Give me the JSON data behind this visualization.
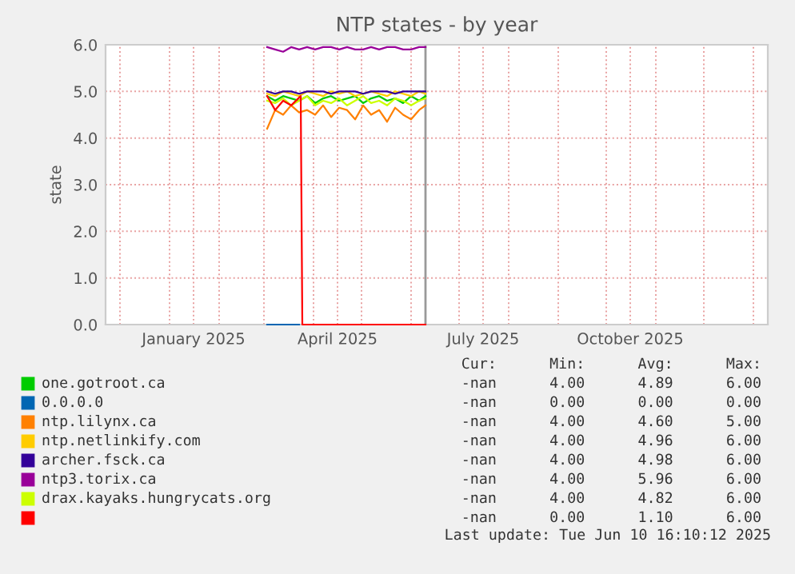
{
  "chart_data": {
    "type": "line",
    "title": "NTP states - by year",
    "ylabel": "state",
    "x": [
      "2025-03-03",
      "2025-03-08",
      "2025-03-13",
      "2025-03-18",
      "2025-03-23",
      "2025-03-28",
      "2025-04-02",
      "2025-04-07",
      "2025-04-12",
      "2025-04-17",
      "2025-04-22",
      "2025-04-27",
      "2025-05-02",
      "2025-05-07",
      "2025-05-12",
      "2025-05-17",
      "2025-05-22",
      "2025-05-27",
      "2025-06-01",
      "2025-06-06",
      "2025-06-10"
    ],
    "series": [
      {
        "name": "one.gotroot.ca",
        "color": "#00cc00",
        "values": [
          4.9,
          4.8,
          4.9,
          4.85,
          4.8,
          4.9,
          4.75,
          4.85,
          4.9,
          4.8,
          4.85,
          4.9,
          4.75,
          4.85,
          4.9,
          4.8,
          4.85,
          4.75,
          4.9,
          4.8,
          4.9
        ]
      },
      {
        "name": "0.0.0.0",
        "color": "#0066b3",
        "values": [
          0,
          0,
          0,
          0,
          0,
          null,
          null,
          null,
          null,
          null,
          null,
          null,
          null,
          null,
          null,
          null,
          null,
          null,
          null,
          null,
          null
        ]
      },
      {
        "name": "ntp.lilynx.ca",
        "color": "#ff8000",
        "values": [
          4.2,
          4.6,
          4.5,
          4.7,
          4.55,
          4.6,
          4.5,
          4.7,
          4.45,
          4.65,
          4.6,
          4.4,
          4.7,
          4.5,
          4.6,
          4.35,
          4.65,
          4.5,
          4.4,
          4.6,
          4.7
        ]
      },
      {
        "name": "ntp.netlinkify.com",
        "color": "#ffcc00",
        "values": [
          4.95,
          4.9,
          5.0,
          4.95,
          4.9,
          5.0,
          4.95,
          4.9,
          5.0,
          4.95,
          5.0,
          4.9,
          4.95,
          5.0,
          4.95,
          4.9,
          5.0,
          4.95,
          4.9,
          5.0,
          4.95
        ]
      },
      {
        "name": "archer.fsck.ca",
        "color": "#330099",
        "values": [
          5.0,
          4.95,
          5.0,
          5.0,
          4.95,
          5.0,
          5.0,
          5.0,
          4.95,
          5.0,
          5.0,
          5.0,
          4.95,
          5.0,
          5.0,
          5.0,
          4.95,
          5.0,
          5.0,
          5.0,
          5.0
        ]
      },
      {
        "name": "ntp3.torix.ca",
        "color": "#990099",
        "values": [
          5.95,
          5.9,
          5.85,
          5.95,
          5.9,
          5.95,
          5.9,
          5.95,
          5.95,
          5.9,
          5.95,
          5.9,
          5.9,
          5.95,
          5.9,
          5.95,
          5.95,
          5.9,
          5.9,
          5.95,
          5.95
        ]
      },
      {
        "name": "drax.kayaks.hungrycats.org",
        "color": "#ccff00",
        "values": [
          4.8,
          4.75,
          4.85,
          4.7,
          4.8,
          4.9,
          4.7,
          4.8,
          4.75,
          4.85,
          4.7,
          4.8,
          4.9,
          4.75,
          4.8,
          4.7,
          4.85,
          4.8,
          4.7,
          4.8,
          4.85
        ]
      },
      {
        "color": "#ff0000",
        "x": [
          "2025-03-03",
          "2025-03-08",
          "2025-03-13",
          "2025-03-18",
          "2025-03-24",
          "2025-03-25",
          "2025-06-10"
        ],
        "values": [
          4.9,
          4.6,
          4.8,
          4.7,
          4.9,
          0,
          0
        ]
      }
    ],
    "xlim": [
      "2024-11-22",
      "2026-01-10"
    ],
    "xticks": [
      {
        "value": "2024-12-01",
        "label": null
      },
      {
        "value": "2025-01-01",
        "label": null
      },
      {
        "value": "2025-01-16",
        "label": "January 2025"
      },
      {
        "value": "2025-02-01",
        "label": null
      },
      {
        "value": "2025-03-01",
        "label": null
      },
      {
        "value": "2025-04-01",
        "label": null
      },
      {
        "value": "2025-04-16",
        "label": "April 2025"
      },
      {
        "value": "2025-05-01",
        "label": null
      },
      {
        "value": "2025-06-01",
        "label": null
      },
      {
        "value": "2025-07-01",
        "label": null
      },
      {
        "value": "2025-07-16",
        "label": "July 2025"
      },
      {
        "value": "2025-08-01",
        "label": null
      },
      {
        "value": "2025-09-01",
        "label": null
      },
      {
        "value": "2025-10-01",
        "label": null
      },
      {
        "value": "2025-10-16",
        "label": "October 2025"
      },
      {
        "value": "2025-11-01",
        "label": null
      },
      {
        "value": "2025-12-01",
        "label": null
      },
      {
        "value": "2026-01-01",
        "label": null
      }
    ],
    "ylim": [
      0,
      6
    ],
    "yticks": [
      {
        "value": 0,
        "label": "0.0"
      },
      {
        "value": 1,
        "label": "1.0"
      },
      {
        "value": 2,
        "label": "2.0"
      },
      {
        "value": 3,
        "label": "3.0"
      },
      {
        "value": 4,
        "label": "4.0"
      },
      {
        "value": 5,
        "label": "5.0"
      },
      {
        "value": 6,
        "label": "6.0"
      }
    ],
    "ref_lines": [
      {
        "axis": "x",
        "value": "2025-06-10",
        "color": "#999999"
      }
    ],
    "grid": true,
    "legend": "bottom",
    "annotations": [
      "Cur:      Min:      Avg:      Max:",
      "-nan      4.00      4.89      6.00",
      "-nan      0.00      0.00      0.00",
      "-nan      4.00      4.60      5.00",
      "-nan      4.00      4.96      6.00",
      "-nan      4.00      4.98      6.00",
      "-nan      4.00      5.96      6.00",
      "-nan      4.00      4.82      6.00",
      "-nan      0.00      1.10      6.00",
      "Last update: Tue Jun 10 16:10:12 2025"
    ]
  }
}
